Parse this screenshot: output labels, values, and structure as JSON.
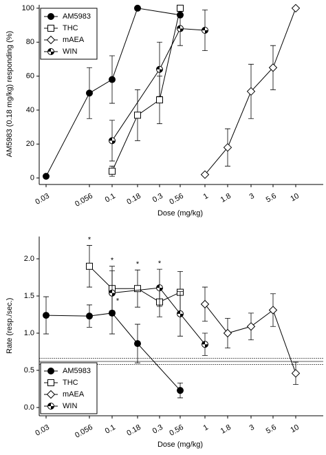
{
  "chart_data": [
    {
      "type": "line",
      "ylabel": "AM5983 (0.18 mg/kg) responding (%)",
      "xlabel": "Dose (mg/kg)",
      "categories": [
        "0.03",
        "0.056",
        "0.1",
        "0.18",
        "0.3",
        "0.56",
        "1",
        "1.8",
        "3",
        "5.6",
        "10"
      ],
      "ylim": [
        -3,
        102
      ],
      "yticks": [
        0,
        20,
        40,
        60,
        80,
        100
      ],
      "legend": "upper left",
      "series": [
        {
          "name": "AM5983",
          "color": "#000000",
          "marker": "filled-circle",
          "x": [
            "0.03",
            "0.056",
            "0.1",
            "0.18",
            "0.56"
          ],
          "values": [
            1,
            50,
            58,
            100,
            96
          ],
          "errors": [
            0,
            15,
            14,
            0,
            0
          ]
        },
        {
          "name": "THC",
          "color": "#000000",
          "marker": "open-square",
          "x": [
            "0.1",
            "0.18",
            "0.3",
            "0.56"
          ],
          "values": [
            4,
            37,
            46,
            100
          ],
          "errors": [
            3,
            15,
            14,
            0
          ]
        },
        {
          "name": "mAEA",
          "color": "#000000",
          "marker": "open-diamond",
          "x": [
            "1",
            "1.8",
            "3",
            "5.6",
            "10"
          ],
          "values": [
            2,
            18,
            51,
            65,
            100
          ],
          "errors": [
            0,
            11,
            16,
            13,
            0
          ]
        },
        {
          "name": "WIN",
          "color": "#000000",
          "marker": "half-circle",
          "x": [
            "0.1",
            "0.3",
            "0.56",
            "1"
          ],
          "values": [
            22,
            64,
            88,
            87
          ],
          "errors": [
            12,
            16,
            10,
            12
          ]
        }
      ]
    },
    {
      "type": "line",
      "ylabel": "Rate (resp./sec.)",
      "xlabel": "Dose (mg/kg)",
      "categories": [
        "0.03",
        "0.056",
        "0.1",
        "0.18",
        "0.3",
        "0.56",
        "1",
        "1.8",
        "3",
        "5.6",
        "10"
      ],
      "ylim": [
        -0.1,
        2.3
      ],
      "yticks": [
        {
          "value": 0,
          "label": "0.0"
        },
        0.5,
        {
          "value": 1,
          "label": "1.0"
        },
        1.5,
        {
          "value": 2,
          "label": "2.0"
        }
      ],
      "legend": "lower left",
      "reference_lines": [
        0.58,
        0.62,
        0.66
      ],
      "series": [
        {
          "name": "AM5983",
          "color": "#000000",
          "marker": "filled-circle",
          "x": [
            "0.03",
            "0.056",
            "0.1",
            "0.18",
            "0.56"
          ],
          "values": [
            1.24,
            1.23,
            1.27,
            0.86,
            0.23
          ],
          "errors": [
            0.25,
            0.15,
            0.28,
            0.26,
            0.1
          ]
        },
        {
          "name": "THC",
          "color": "#000000",
          "marker": "open-square",
          "x": [
            "0.056",
            "0.1",
            "0.18",
            "0.3",
            "0.56"
          ],
          "values": [
            1.9,
            1.6,
            1.6,
            1.42,
            1.55
          ],
          "errors": [
            0.28,
            0.3,
            0.25,
            0.2,
            0.28
          ]
        },
        {
          "name": "mAEA",
          "color": "#000000",
          "marker": "open-diamond",
          "x": [
            "1",
            "1.8",
            "3",
            "5.6",
            "10"
          ],
          "values": [
            1.39,
            1.0,
            1.09,
            1.31,
            0.46
          ],
          "errors": [
            0.23,
            0.2,
            0.18,
            0.22,
            0.15
          ]
        },
        {
          "name": "WIN",
          "color": "#000000",
          "marker": "half-circle",
          "x": [
            "0.1",
            "0.3",
            "0.56",
            "1"
          ],
          "values": [
            1.54,
            1.61,
            1.26,
            0.85
          ],
          "errors": [
            0.3,
            0.25,
            0.3,
            0.15
          ]
        }
      ],
      "annotations": [
        {
          "text": "*",
          "series": "THC",
          "x": "0.056",
          "position": "above"
        },
        {
          "text": "*",
          "series": "THC",
          "x": "0.1",
          "position": "above"
        },
        {
          "text": "*",
          "series": "THC",
          "x": "0.18",
          "position": "above"
        },
        {
          "text": "*",
          "series": "WIN",
          "x": "0.3",
          "position": "above"
        },
        {
          "text": "*",
          "series": "WIN",
          "x": "0.1",
          "position": "below"
        }
      ]
    }
  ]
}
